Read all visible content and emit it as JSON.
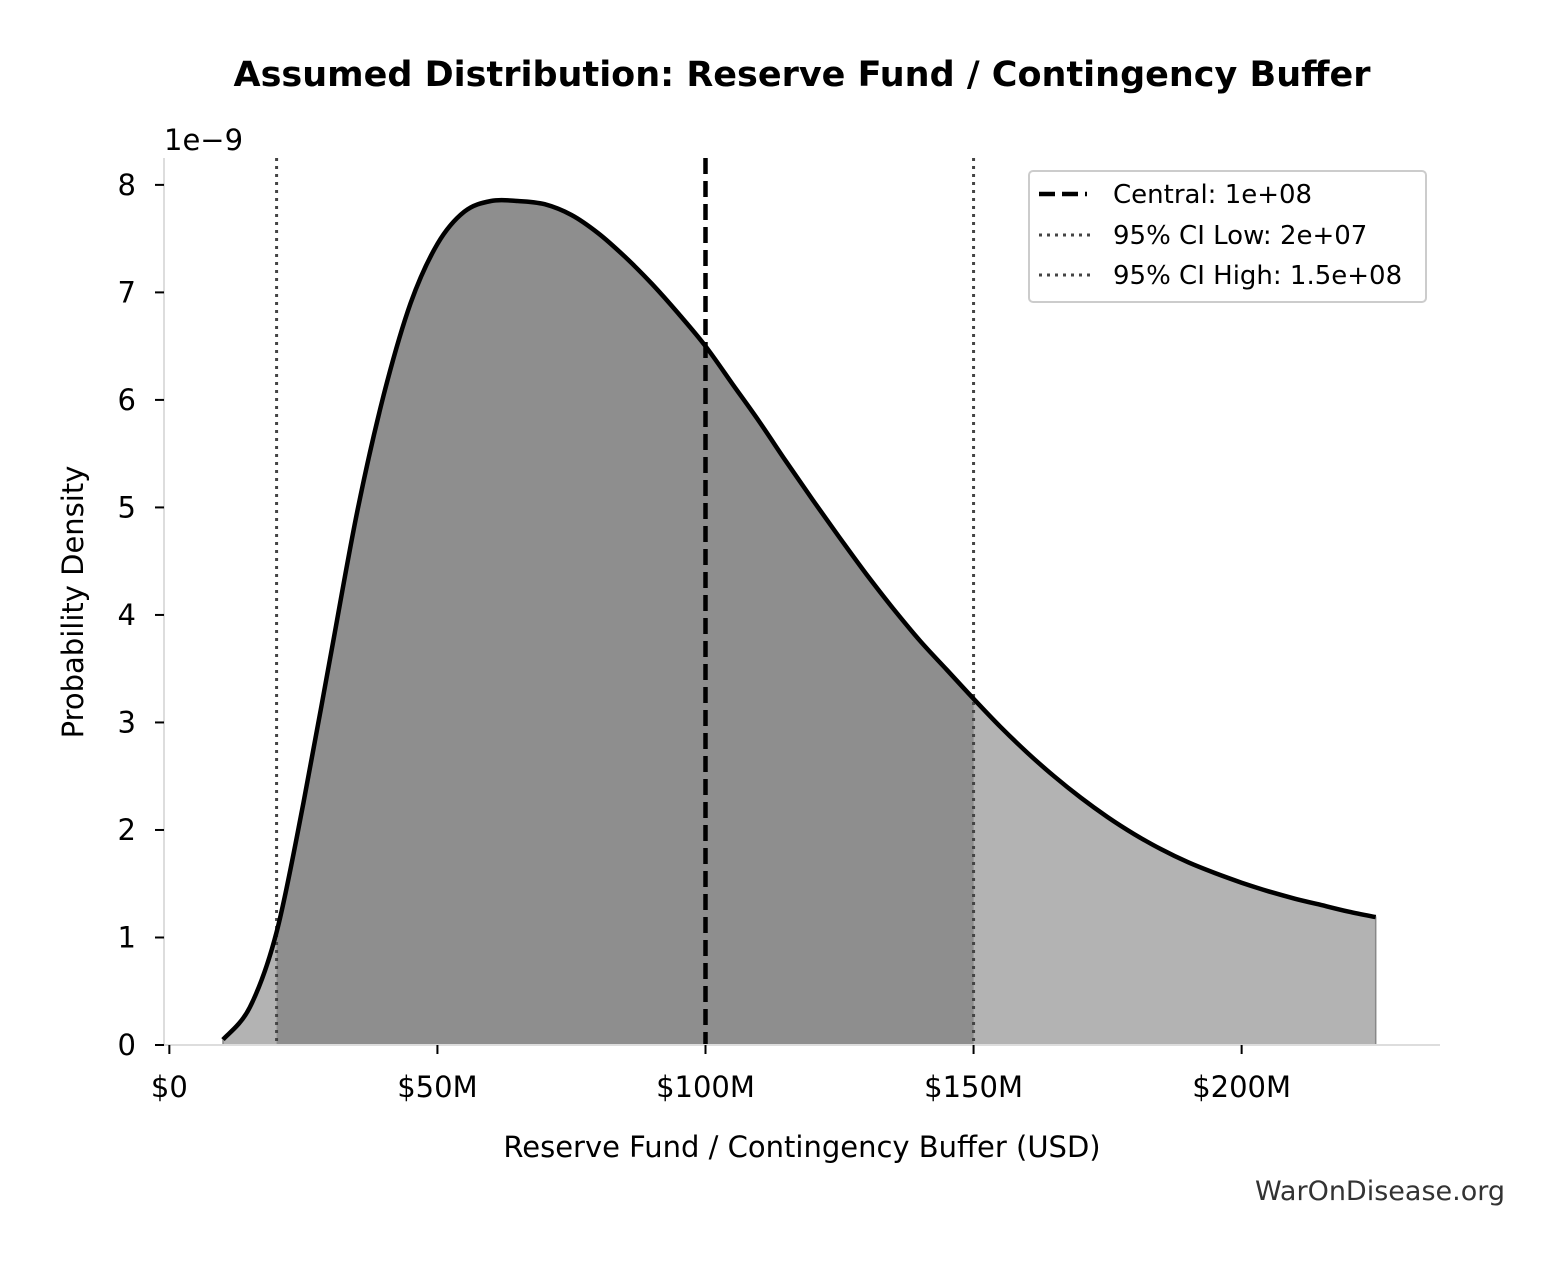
{
  "chart_data": {
    "type": "area",
    "title": "Assumed Distribution: Reserve Fund / Contingency Buffer",
    "xlabel": "Reserve Fund / Contingency Buffer (USD)",
    "ylabel": "Probability Density",
    "y_offset_label": "1e−9",
    "y_scale": 1e-09,
    "xlim": [
      -1000000,
      237000000
    ],
    "ylim": [
      0,
      8.25
    ],
    "x_ticks": [
      0,
      50000000,
      100000000,
      150000000,
      200000000
    ],
    "x_tick_labels": [
      "$0",
      "$50M",
      "$100M",
      "$150M",
      "$200M"
    ],
    "y_ticks": [
      0,
      1,
      2,
      3,
      4,
      5,
      6,
      7,
      8
    ],
    "y_tick_labels": [
      "0",
      "1",
      "2",
      "3",
      "4",
      "5",
      "6",
      "7",
      "8"
    ],
    "grid": false,
    "legend_position": "top-right",
    "series": [
      {
        "x": [
          10000000,
          15000000,
          20000000,
          25000000,
          30000000,
          35000000,
          40000000,
          45000000,
          50000000,
          55000000,
          60000000,
          65000000,
          70000000,
          75000000,
          80000000,
          85000000,
          90000000,
          95000000,
          100000000,
          105000000,
          110000000,
          115000000,
          120000000,
          125000000,
          130000000,
          135000000,
          140000000,
          145000000,
          150000000,
          155000000,
          160000000,
          165000000,
          170000000,
          175000000,
          180000000,
          185000000,
          190000000,
          195000000,
          200000000,
          205000000,
          210000000,
          215000000,
          220000000,
          225000000
        ],
        "y": [
          0.05,
          0.35,
          1.05,
          2.25,
          3.6,
          4.95,
          6.05,
          6.9,
          7.45,
          7.75,
          7.85,
          7.85,
          7.82,
          7.72,
          7.55,
          7.33,
          7.08,
          6.8,
          6.5,
          6.15,
          5.8,
          5.43,
          5.07,
          4.72,
          4.38,
          4.06,
          3.76,
          3.49,
          3.22,
          2.96,
          2.72,
          2.5,
          2.3,
          2.12,
          1.96,
          1.82,
          1.7,
          1.6,
          1.51,
          1.43,
          1.36,
          1.3,
          1.24,
          1.19
        ]
      }
    ],
    "central": 100000000,
    "ci_low": 20000000,
    "ci_high": 150000000,
    "legend": [
      {
        "label": "Central: 1e+08",
        "style": "dashed"
      },
      {
        "label": "95% CI Low: 2e+07",
        "style": "dotted"
      },
      {
        "label": "95% CI High: 1.5e+08",
        "style": "dotted"
      }
    ],
    "colors": {
      "curve": "#000000",
      "fill_inside": "#8e8e8e",
      "fill_outside": "#b3b3b3",
      "central_line": "#000000",
      "ci_line": "#444444"
    }
  },
  "watermark": "WarOnDisease.org"
}
